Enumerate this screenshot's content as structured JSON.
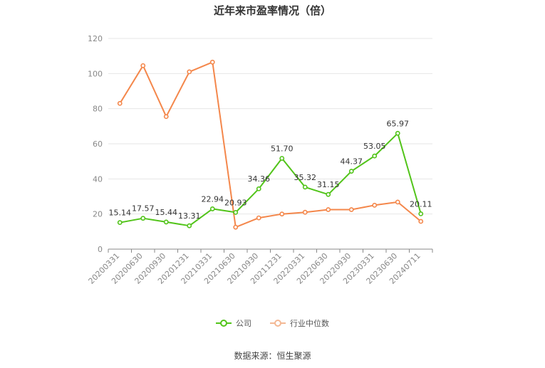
{
  "title": "近年来市盈率情况（倍）",
  "source": "数据来源：恒生聚源",
  "chart_data": {
    "type": "line",
    "title": "近年来市盈率情况（倍）",
    "categories": [
      "20200331",
      "20200630",
      "20200930",
      "20201231",
      "20210331",
      "20210630",
      "20210930",
      "20211231",
      "20220331",
      "20220630",
      "20220930",
      "20230331",
      "20230630",
      "20240711"
    ],
    "ylim": [
      0,
      120
    ],
    "yticks": [
      0,
      20,
      40,
      60,
      80,
      100,
      120
    ],
    "grid": true,
    "legend_position": "bottom",
    "series": [
      {
        "name": "公司",
        "color": "#52c41a",
        "values": [
          15.14,
          17.57,
          15.44,
          13.31,
          22.94,
          20.93,
          34.36,
          51.7,
          35.32,
          31.15,
          44.37,
          53.05,
          65.97,
          20.11
        ],
        "labels": [
          "15.14",
          "17.57",
          "15.44",
          "13.31",
          "22.94",
          "20.93",
          "34.36",
          "51.70",
          "35.32",
          "31.15",
          "44.37",
          "53.05",
          "65.97",
          "20.11"
        ]
      },
      {
        "name": "行业中位数",
        "color": "#f4874b",
        "values": [
          83.0,
          104.5,
          75.5,
          101.0,
          106.5,
          12.5,
          17.8,
          20.0,
          21.0,
          22.5,
          22.5,
          25.0,
          26.8,
          15.8
        ]
      }
    ]
  }
}
